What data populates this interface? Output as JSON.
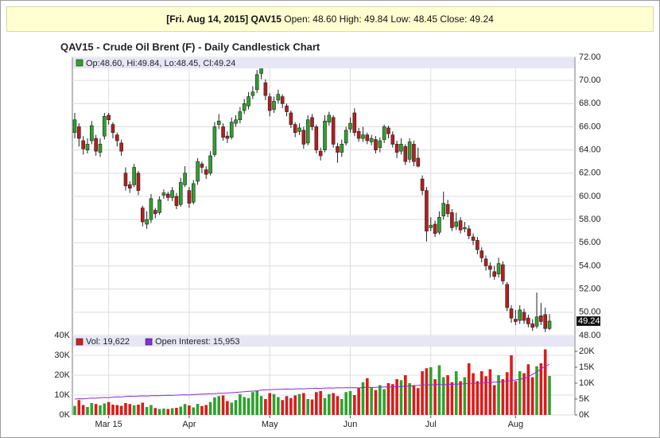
{
  "header": {
    "date_symbol": "[Fri. Aug 14, 2015] QAV15",
    "quote": "Open: 48.60 High: 49.84 Low: 48.45 Close: 49.24"
  },
  "chart_data": [
    {
      "type": "candlestick",
      "title": "QAV15 - Crude Oil Brent (F) - Daily Candlestick Chart",
      "legend": "Op:48.60, Hi:49.84, Lo:48.45, Cl:49.24",
      "last_label": "49.24",
      "up_color": "#2ea12e",
      "down_color": "#b41e1e",
      "grid": true,
      "xlim": [
        0,
        118
      ],
      "xticks": [
        {
          "value": 8,
          "label": "Mar 15"
        },
        {
          "value": 27,
          "label": "Apr"
        },
        {
          "value": 46,
          "label": "May"
        },
        {
          "value": 65,
          "label": "Jun"
        },
        {
          "value": 84,
          "label": "Jul"
        },
        {
          "value": 104,
          "label": "Aug"
        }
      ],
      "ylim": [
        48,
        72
      ],
      "yticks": [
        {
          "value": 48,
          "label": "48.00"
        },
        {
          "value": 50,
          "label": "50.00"
        },
        {
          "value": 52,
          "label": "52.00"
        },
        {
          "value": 54,
          "label": "54.00"
        },
        {
          "value": 56,
          "label": "56.00"
        },
        {
          "value": 58,
          "label": "58.00"
        },
        {
          "value": 60,
          "label": "60.00"
        },
        {
          "value": 62,
          "label": "62.00"
        },
        {
          "value": 64,
          "label": "64.00"
        },
        {
          "value": 66,
          "label": "66.00"
        },
        {
          "value": 68,
          "label": "68.00"
        },
        {
          "value": 70,
          "label": "70.00"
        },
        {
          "value": 72,
          "label": "72.00"
        }
      ],
      "open": [
        65.5,
        66.0,
        64.8,
        64.0,
        64.8,
        65.0,
        63.8,
        65.2,
        67.0,
        66.2,
        65.3,
        64.6,
        62.0,
        61.0,
        61.0,
        62.0,
        59.0,
        57.6,
        58.0,
        58.8,
        58.6,
        60.1,
        60.2,
        59.9,
        60.0,
        59.3,
        61.0,
        60.5,
        59.5,
        61.3,
        62.8,
        62.3,
        62.0,
        63.6,
        66.2,
        66.0,
        65.2,
        65.1,
        66.3,
        66.6,
        67.4,
        67.8,
        68.7,
        69.2,
        70.6,
        69.8,
        68.6,
        67.5,
        68.3,
        68.6,
        67.8,
        67.2,
        66.2,
        65.6,
        65.7,
        64.6,
        66.8,
        66.0,
        63.9,
        64.0,
        66.4,
        66.8,
        64.3,
        63.8,
        64.6,
        65.8,
        67.2,
        65.6,
        65.0,
        65.3,
        64.7,
        64.9,
        64.2,
        64.9,
        65.9,
        65.3,
        64.5,
        63.9,
        64.3,
        63.2,
        64.5,
        63.3,
        61.5,
        60.5,
        57.3,
        57.6,
        56.9,
        58.3,
        59.3,
        58.6,
        57.4,
        57.9,
        57.2,
        57.2,
        56.5,
        56.2,
        55.3,
        54.6,
        54.0,
        53.5,
        53.3,
        54.1,
        52.4,
        50.3,
        49.4,
        49.3,
        50.0,
        49.5,
        49.0,
        48.8,
        49.7,
        49.8,
        48.6
      ],
      "high": [
        67.2,
        66.3,
        65.2,
        65.0,
        66.5,
        65.3,
        65.0,
        67.2,
        67.2,
        66.4,
        65.5,
        64.9,
        62.5,
        61.3,
        62.8,
        62.2,
        59.2,
        58.7,
        60.2,
        59.0,
        60.0,
        60.6,
        60.4,
        60.8,
        60.3,
        61.6,
        62.6,
        60.8,
        61.4,
        63.3,
        63.0,
        62.6,
        63.9,
        66.4,
        67.1,
        66.3,
        65.6,
        66.8,
        67.0,
        67.7,
        68.4,
        69.0,
        69.5,
        70.9,
        71.6,
        70.1,
        68.9,
        68.6,
        69.2,
        68.8,
        68.0,
        67.4,
        66.4,
        66.3,
        66.0,
        67.0,
        67.1,
        66.2,
        64.2,
        67.0,
        67.3,
        67.0,
        64.6,
        64.9,
        66.0,
        66.8,
        67.6,
        65.9,
        66.0,
        65.5,
        65.3,
        65.2,
        65.1,
        66.2,
        66.1,
        65.6,
        64.8,
        65.0,
        64.5,
        65.0,
        64.8,
        64.2,
        61.8,
        60.8,
        58.2,
        57.9,
        58.7,
        60.4,
        59.7,
        58.9,
        58.6,
        58.2,
        57.8,
        57.5,
        56.8,
        56.5,
        55.6,
        54.9,
        54.3,
        54.0,
        54.7,
        54.4,
        52.6,
        50.6,
        50.2,
        50.6,
        50.3,
        49.8,
        49.4,
        51.7,
        50.8,
        50.4,
        49.84
      ],
      "low": [
        65.0,
        64.3,
        63.6,
        63.7,
        64.5,
        63.5,
        63.4,
        64.9,
        66.2,
        65.0,
        64.3,
        63.5,
        60.5,
        60.3,
        60.8,
        60.1,
        57.4,
        57.2,
        57.7,
        58.1,
        58.4,
        59.8,
        59.6,
        59.6,
        58.9,
        59.1,
        60.8,
        59.0,
        59.3,
        61.0,
        62.0,
        61.5,
        61.8,
        63.4,
        65.8,
        64.8,
        64.6,
        64.9,
        66.0,
        66.3,
        67.1,
        67.5,
        68.4,
        68.9,
        70.1,
        68.3,
        66.9,
        67.2,
        68.0,
        67.6,
        66.9,
        65.9,
        65.1,
        65.3,
        64.1,
        64.4,
        65.7,
        63.7,
        63.1,
        63.8,
        66.1,
        64.2,
        62.9,
        63.4,
        64.4,
        65.5,
        65.2,
        64.7,
        64.7,
        64.5,
        64.4,
        63.7,
        63.8,
        64.6,
        65.0,
        64.2,
        63.3,
        63.6,
        62.7,
        62.9,
        62.6,
        62.5,
        60.1,
        56.1,
        57.0,
        56.5,
        56.7,
        58.0,
        58.2,
        57.0,
        57.1,
        56.8,
        56.9,
        56.3,
        55.8,
        55.0,
        54.3,
        53.6,
        53.0,
        52.8,
        53.0,
        52.4,
        50.1,
        49.1,
        48.9,
        49.0,
        49.0,
        48.7,
        48.4,
        48.6,
        48.9,
        48.3,
        48.45
      ],
      "close": [
        66.6,
        65.0,
        64.1,
        64.5,
        66.1,
        63.9,
        64.5,
        66.9,
        66.6,
        65.5,
        64.8,
        63.9,
        60.9,
        60.7,
        62.5,
        60.5,
        57.8,
        58.0,
        59.8,
        58.5,
        59.7,
        60.3,
        59.9,
        60.5,
        59.2,
        61.2,
        62.0,
        59.4,
        61.1,
        63.0,
        62.5,
        61.9,
        63.5,
        66.0,
        66.5,
        65.1,
        65.0,
        66.4,
        66.6,
        67.3,
        68.0,
        68.6,
        69.0,
        70.5,
        71.2,
        68.7,
        67.4,
        68.2,
        68.8,
        68.0,
        67.3,
        66.2,
        65.5,
        65.9,
        64.5,
        66.6,
        66.0,
        64.0,
        63.5,
        66.5,
        67.0,
        64.5,
        63.8,
        64.5,
        65.7,
        66.3,
        65.5,
        65.0,
        65.3,
        64.8,
        65.0,
        64.0,
        64.8,
        66.0,
        65.4,
        64.5,
        63.8,
        64.5,
        63.0,
        64.7,
        63.0,
        62.6,
        60.5,
        57.0,
        57.5,
        56.8,
        58.2,
        59.4,
        58.5,
        57.3,
        57.8,
        57.1,
        57.3,
        56.6,
        56.2,
        55.4,
        54.7,
        54.0,
        53.7,
        53.1,
        54.2,
        52.7,
        50.4,
        49.5,
        49.2,
        50.2,
        49.3,
        49.0,
        48.7,
        49.6,
        49.2,
        48.6,
        49.24
      ]
    },
    {
      "type": "bar",
      "up_color": "#2ea12e",
      "down_color": "#dd1a1a",
      "ylim": [
        0,
        40000
      ],
      "yticks": [
        {
          "value": 0,
          "label": "0K"
        },
        {
          "value": 10000,
          "label": "10K"
        },
        {
          "value": 20000,
          "label": "20K"
        },
        {
          "value": 30000,
          "label": "30K"
        },
        {
          "value": 40000,
          "label": "40K"
        }
      ],
      "y2lim": [
        0,
        25000
      ],
      "y2ticks": [
        {
          "value": 0,
          "label": "0K"
        },
        {
          "value": 5000,
          "label": "5K"
        },
        {
          "value": 10000,
          "label": "10K"
        },
        {
          "value": 15000,
          "label": "15K"
        },
        {
          "value": 20000,
          "label": "20K"
        }
      ],
      "series": [
        {
          "name": "Vol: 19,622",
          "color": "#dd1a1a",
          "values": [
            4500,
            7500,
            5000,
            4000,
            6000,
            5500,
            4800,
            5800,
            6500,
            5200,
            5000,
            4600,
            6000,
            5500,
            4800,
            5200,
            6200,
            4000,
            5000,
            3500,
            3000,
            3200,
            3000,
            3400,
            3600,
            4200,
            5500,
            4800,
            3800,
            5600,
            4500,
            5000,
            6500,
            8800,
            9500,
            9800,
            7000,
            6200,
            7500,
            10500,
            9000,
            8500,
            11500,
            12000,
            9500,
            8000,
            11000,
            10500,
            9000,
            7500,
            9500,
            8500,
            9800,
            10500,
            11000,
            8000,
            7800,
            11500,
            12000,
            8500,
            10500,
            11000,
            9500,
            8000,
            11500,
            12000,
            10000,
            13500,
            16500,
            18500,
            14000,
            12500,
            15000,
            13000,
            16000,
            15500,
            18000,
            17500,
            20000,
            16000,
            15000,
            13500,
            22000,
            23500,
            24000,
            18000,
            25000,
            19000,
            20000,
            16500,
            22000,
            17000,
            19000,
            26000,
            21000,
            17000,
            22000,
            19500,
            23000,
            15000,
            20000,
            18000,
            21500,
            30000,
            17000,
            22000,
            21000,
            25500,
            19000,
            24500,
            26000,
            33000,
            19622
          ]
        },
        {
          "name": "Open Interest: 15,953",
          "color": "#8a2be2",
          "axis": "y2",
          "values": [
            5000,
            5100,
            5050,
            5200,
            5300,
            5250,
            5400,
            5500,
            5450,
            5600,
            5700,
            5650,
            5800,
            5900,
            5850,
            5950,
            6000,
            5950,
            6050,
            6100,
            6050,
            6150,
            6200,
            6150,
            6250,
            6300,
            6350,
            6300,
            6400,
            6500,
            6550,
            6600,
            6650,
            6700,
            6800,
            6850,
            6900,
            7000,
            7100,
            7200,
            7300,
            7400,
            7500,
            7600,
            7800,
            7900,
            7950,
            8000,
            8050,
            8100,
            8150,
            8100,
            8200,
            8250,
            8200,
            8300,
            8350,
            8400,
            8350,
            8450,
            8500,
            8450,
            8550,
            8500,
            8600,
            8550,
            8600,
            8500,
            8650,
            8700,
            8650,
            8700,
            8750,
            8800,
            8750,
            8800,
            8900,
            8950,
            9000,
            9100,
            9200,
            9300,
            9400,
            9500,
            9450,
            9550,
            9600,
            9500,
            9550,
            9650,
            9700,
            9750,
            9800,
            9900,
            10000,
            9950,
            10050,
            10100,
            10200,
            10300,
            10400,
            10500,
            10600,
            10800,
            11000,
            11200,
            11500,
            12000,
            12800,
            13500,
            14500,
            15300,
            15953
          ]
        }
      ]
    }
  ]
}
